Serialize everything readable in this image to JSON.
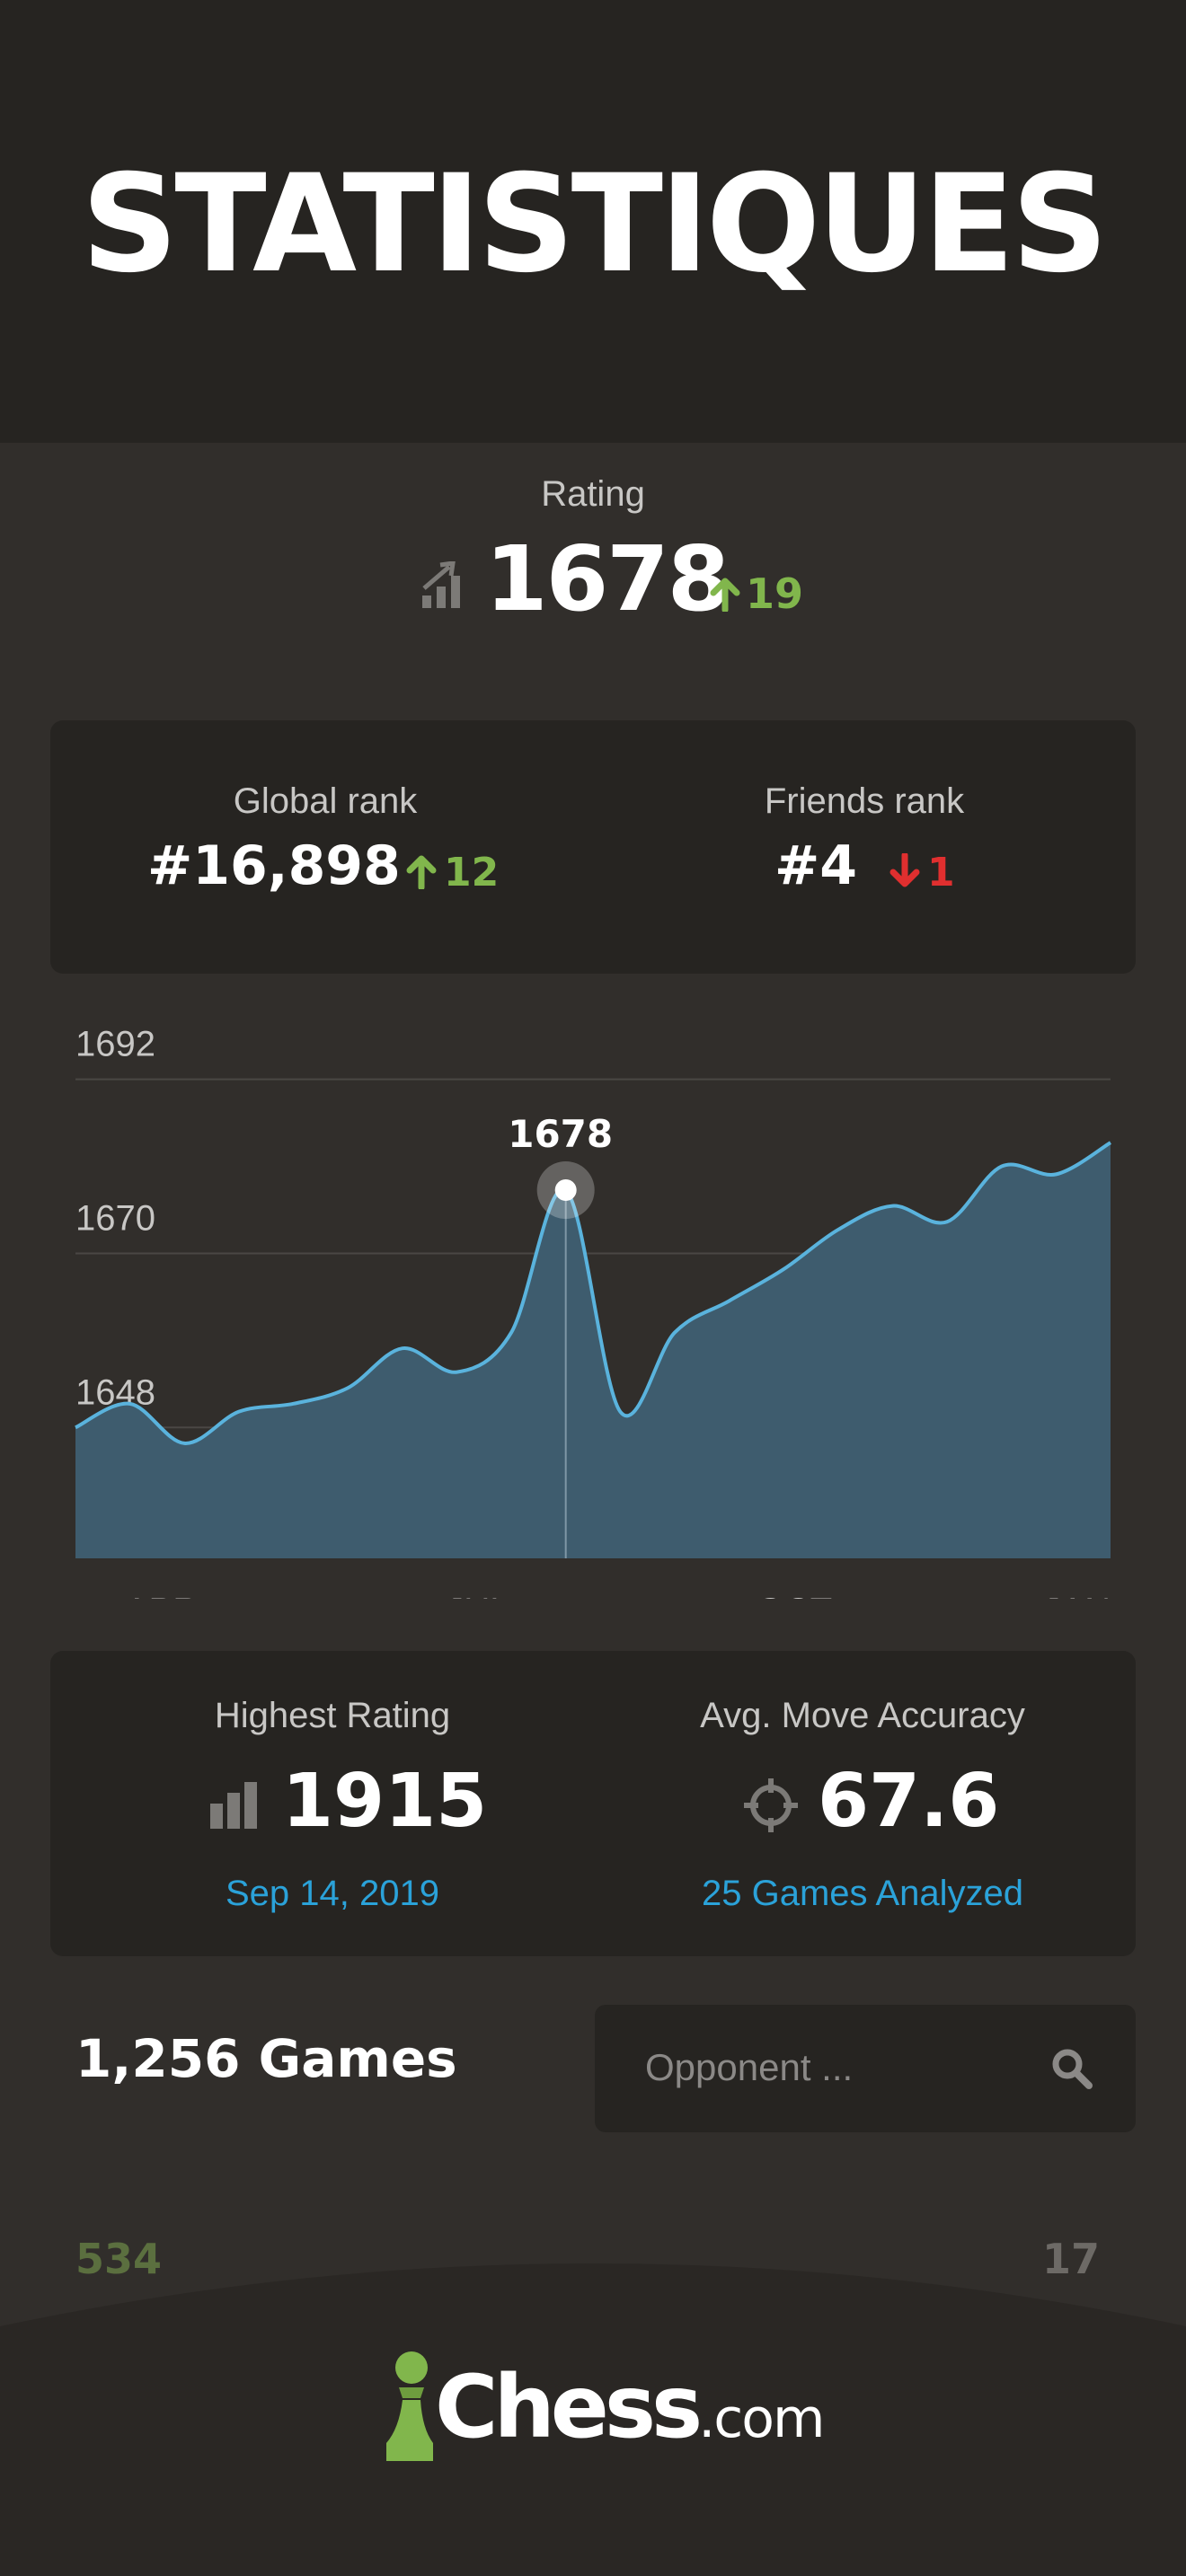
{
  "header": {
    "title": "STATISTIQUES"
  },
  "rating": {
    "label": "Rating",
    "value": "1678",
    "change": "19",
    "icon": "rating-trend-icon"
  },
  "ranks": {
    "global": {
      "label": "Global rank",
      "value": "#16,898",
      "change": "12",
      "direction": "up"
    },
    "friends": {
      "label": "Friends rank",
      "value": "#4",
      "change": "1",
      "direction": "down"
    }
  },
  "chart_data": {
    "type": "area",
    "title": "",
    "xlabel": "",
    "ylabel": "",
    "x_ticks": [
      "APR",
      "JUL",
      "OCT",
      "JAN"
    ],
    "y_ticks": [
      1692,
      1670,
      1648
    ],
    "ylim": [
      1636,
      1699
    ],
    "grid": true,
    "series": [
      {
        "values": [
          1648,
          1651,
          1646,
          1650,
          1651,
          1653,
          1658,
          1655,
          1660,
          1678,
          1650,
          1660,
          1664,
          1668,
          1673,
          1676,
          1674,
          1681,
          1680,
          1684
        ]
      }
    ],
    "highlight": {
      "label": "1678",
      "value": 1678,
      "index": 9
    },
    "colors": {
      "line": "#5ab3dd",
      "fill": "#3e5c6e"
    }
  },
  "stats": {
    "highest": {
      "label": "Highest Rating",
      "value": "1915",
      "link": "Sep 14, 2019",
      "icon": "bar-chart-icon"
    },
    "accuracy": {
      "label": "Avg. Move Accuracy",
      "value": "67.6",
      "link": "25 Games Analyzed",
      "icon": "crosshair-icon"
    }
  },
  "games": {
    "title": "1,256 Games",
    "search_placeholder": "Opponent ...",
    "wins": "534",
    "draws": "17"
  },
  "footer": {
    "brand": "Chess",
    "brand_suffix": ".com"
  },
  "colors": {
    "accent_green": "#81b64c",
    "accent_red": "#e02f2f",
    "link_blue": "#2ba2d9",
    "background": "#312e2b",
    "card": "#262421"
  }
}
